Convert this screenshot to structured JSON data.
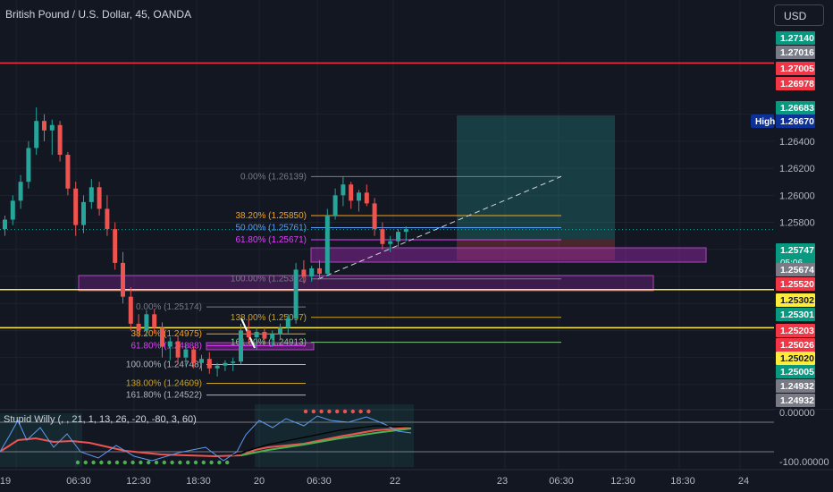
{
  "header": {
    "symbol_title": "British Pound / U.S. Dollar, 45, OANDA",
    "currency_button": "USD"
  },
  "indicator": {
    "title": "Stupid Willy (, , 21, 1, 13, 26, -20, -80, 3, 60)",
    "axis_labels": [
      "0.00000",
      "-100.00000"
    ]
  },
  "colors": {
    "background": "#131722",
    "up": "#26a69a",
    "down": "#ef5350",
    "grid": "#1e222d",
    "red_line": "#f23645",
    "yellow_line": "#ffeb3b",
    "purple_zone": "#9c27b0",
    "target_zone": "#26a69a"
  },
  "chart_data": {
    "type": "candlestick",
    "y_axis": {
      "range": [
        1.2485,
        1.272
      ],
      "tick_labels": [
        "1.26600",
        "1.26400",
        "1.26200",
        "1.26000",
        "1.25800"
      ]
    },
    "x_axis": {
      "tick_labels": [
        "19",
        "06:30",
        "12:30",
        "18:30",
        "20",
        "06:30",
        "22",
        "23",
        "06:30",
        "12:30",
        "18:30",
        "24"
      ]
    },
    "price_badges": [
      {
        "label": "1.27140",
        "color": "#089981"
      },
      {
        "label": "1.27016",
        "color": "#787b86"
      },
      {
        "label": "1.27005",
        "color": "#f23645"
      },
      {
        "label": "1.26978",
        "color": "#f23645"
      },
      {
        "label": "1.26683",
        "color": "#089981"
      },
      {
        "label": "1.26670",
        "color": "#0c3299",
        "tag": "High"
      },
      {
        "label": "1.25747",
        "color": "#089981",
        "sub": "05:06"
      },
      {
        "label": "1.25674",
        "color": "#787b86"
      },
      {
        "label": "1.25520",
        "color": "#f23645"
      },
      {
        "label": "1.25302",
        "color": "#ffeb3b"
      },
      {
        "label": "1.25301",
        "color": "#089981"
      },
      {
        "label": "1.25203",
        "color": "#f23645"
      },
      {
        "label": "1.25026",
        "color": "#f23645"
      },
      {
        "label": "1.25020",
        "color": "#ffeb3b"
      },
      {
        "label": "1.25005",
        "color": "#089981"
      },
      {
        "label": "1.24932",
        "color": "#787b86"
      },
      {
        "label": "1.24932",
        "color": "#787b86"
      }
    ],
    "horizontal_lines": [
      {
        "price": 1.26978,
        "color": "#f23645"
      },
      {
        "price": 1.25302,
        "color": "#ffeb3b"
      },
      {
        "price": 1.2502,
        "color": "#ffeb3b"
      }
    ],
    "fib_set_1": [
      {
        "label": "0.00% (1.26139)",
        "price": 1.26139,
        "color": "#787b86"
      },
      {
        "label": "38.20% (1.25850)",
        "price": 1.2585,
        "color": "#f7a21b"
      },
      {
        "label": "50.00% (1.25761)",
        "price": 1.25761,
        "color": "#5b9cf6"
      },
      {
        "label": "61.80% (1.25671)",
        "price": 1.25671,
        "color": "#e040fb"
      },
      {
        "label": "100.00% (1.25382)",
        "price": 1.25382,
        "color": "#787b86"
      },
      {
        "label": "138.00% (1.25097)",
        "price": 1.25097,
        "color": "#c9a227"
      },
      {
        "label": "161.80% (1.24913)",
        "price": 1.24913,
        "color": "#81c784"
      }
    ],
    "fib_set_2": [
      {
        "label": "0.00% (1.25174)",
        "price": 1.25174,
        "color": "#787b86"
      },
      {
        "label": "38.20% (1.24975)",
        "price": 1.24975,
        "color": "#f7a21b"
      },
      {
        "label": "61.80% (1.24888)",
        "price": 1.24888,
        "color": "#e040fb"
      },
      {
        "label": "100.00% (1.24748)",
        "price": 1.24748,
        "color": "#b2b5be"
      },
      {
        "label": "138.00% (1.24609)",
        "price": 1.24609,
        "color": "#c9a227"
      },
      {
        "label": "161.80% (1.24522)",
        "price": 1.24522,
        "color": "#b2b5be"
      }
    ],
    "candles": [
      {
        "o": 1.2575,
        "h": 1.2585,
        "l": 1.257,
        "c": 1.2582
      },
      {
        "o": 1.2582,
        "h": 1.26,
        "l": 1.2578,
        "c": 1.2596
      },
      {
        "o": 1.2596,
        "h": 1.2615,
        "l": 1.259,
        "c": 1.261
      },
      {
        "o": 1.261,
        "h": 1.264,
        "l": 1.2605,
        "c": 1.2635
      },
      {
        "o": 1.2635,
        "h": 1.2665,
        "l": 1.263,
        "c": 1.2655
      },
      {
        "o": 1.2655,
        "h": 1.266,
        "l": 1.264,
        "c": 1.2648
      },
      {
        "o": 1.2648,
        "h": 1.2656,
        "l": 1.263,
        "c": 1.2652
      },
      {
        "o": 1.2652,
        "h": 1.2655,
        "l": 1.2625,
        "c": 1.263
      },
      {
        "o": 1.263,
        "h": 1.2632,
        "l": 1.26,
        "c": 1.2605
      },
      {
        "o": 1.2605,
        "h": 1.261,
        "l": 1.257,
        "c": 1.2578
      },
      {
        "o": 1.2578,
        "h": 1.26,
        "l": 1.2572,
        "c": 1.2595
      },
      {
        "o": 1.2595,
        "h": 1.2612,
        "l": 1.259,
        "c": 1.2606
      },
      {
        "o": 1.2606,
        "h": 1.261,
        "l": 1.2585,
        "c": 1.259
      },
      {
        "o": 1.259,
        "h": 1.26,
        "l": 1.257,
        "c": 1.2575
      },
      {
        "o": 1.2575,
        "h": 1.258,
        "l": 1.2545,
        "c": 1.255
      },
      {
        "o": 1.255,
        "h": 1.2558,
        "l": 1.252,
        "c": 1.2525
      },
      {
        "o": 1.2525,
        "h": 1.2532,
        "l": 1.25,
        "c": 1.2505
      },
      {
        "o": 1.2505,
        "h": 1.2512,
        "l": 1.2495,
        "c": 1.25
      },
      {
        "o": 1.25,
        "h": 1.2515,
        "l": 1.2496,
        "c": 1.2512
      },
      {
        "o": 1.2512,
        "h": 1.2516,
        "l": 1.2498,
        "c": 1.2502
      },
      {
        "o": 1.2502,
        "h": 1.2506,
        "l": 1.248,
        "c": 1.2488
      },
      {
        "o": 1.2488,
        "h": 1.2495,
        "l": 1.2478,
        "c": 1.2492
      },
      {
        "o": 1.2492,
        "h": 1.2496,
        "l": 1.2475,
        "c": 1.248
      },
      {
        "o": 1.248,
        "h": 1.249,
        "l": 1.2474,
        "c": 1.2486
      },
      {
        "o": 1.2486,
        "h": 1.2488,
        "l": 1.2472,
        "c": 1.2476
      },
      {
        "o": 1.2476,
        "h": 1.2482,
        "l": 1.247,
        "c": 1.2479
      },
      {
        "o": 1.2479,
        "h": 1.2484,
        "l": 1.2468,
        "c": 1.2472
      },
      {
        "o": 1.2472,
        "h": 1.2476,
        "l": 1.2466,
        "c": 1.2474
      },
      {
        "o": 1.2474,
        "h": 1.2478,
        "l": 1.247,
        "c": 1.2476
      },
      {
        "o": 1.2476,
        "h": 1.248,
        "l": 1.247,
        "c": 1.2477
      },
      {
        "o": 1.2477,
        "h": 1.2505,
        "l": 1.2475,
        "c": 1.25
      },
      {
        "o": 1.25,
        "h": 1.2508,
        "l": 1.249,
        "c": 1.2495
      },
      {
        "o": 1.2495,
        "h": 1.2502,
        "l": 1.2486,
        "c": 1.2499
      },
      {
        "o": 1.2499,
        "h": 1.2503,
        "l": 1.249,
        "c": 1.2494
      },
      {
        "o": 1.2494,
        "h": 1.25,
        "l": 1.2488,
        "c": 1.2497
      },
      {
        "o": 1.2497,
        "h": 1.2505,
        "l": 1.2493,
        "c": 1.2502
      },
      {
        "o": 1.2502,
        "h": 1.2512,
        "l": 1.2498,
        "c": 1.2509
      },
      {
        "o": 1.2509,
        "h": 1.255,
        "l": 1.2505,
        "c": 1.2545
      },
      {
        "o": 1.2545,
        "h": 1.2552,
        "l": 1.2535,
        "c": 1.254
      },
      {
        "o": 1.254,
        "h": 1.2548,
        "l": 1.2536,
        "c": 1.2546
      },
      {
        "o": 1.2546,
        "h": 1.2552,
        "l": 1.2538,
        "c": 1.2542
      },
      {
        "o": 1.2542,
        "h": 1.259,
        "l": 1.254,
        "c": 1.2585
      },
      {
        "o": 1.2585,
        "h": 1.2605,
        "l": 1.2582,
        "c": 1.26
      },
      {
        "o": 1.26,
        "h": 1.2614,
        "l": 1.2592,
        "c": 1.2608
      },
      {
        "o": 1.2608,
        "h": 1.261,
        "l": 1.259,
        "c": 1.2596
      },
      {
        "o": 1.2596,
        "h": 1.2604,
        "l": 1.2588,
        "c": 1.2602
      },
      {
        "o": 1.2602,
        "h": 1.2608,
        "l": 1.2592,
        "c": 1.2594
      },
      {
        "o": 1.2594,
        "h": 1.2598,
        "l": 1.257,
        "c": 1.2575
      },
      {
        "o": 1.2575,
        "h": 1.258,
        "l": 1.256,
        "c": 1.2564
      },
      {
        "o": 1.2564,
        "h": 1.257,
        "l": 1.2558,
        "c": 1.2566
      },
      {
        "o": 1.2566,
        "h": 1.2575,
        "l": 1.2562,
        "c": 1.2573
      },
      {
        "o": 1.2573,
        "h": 1.2577,
        "l": 1.2566,
        "c": 1.2575
      }
    ]
  }
}
